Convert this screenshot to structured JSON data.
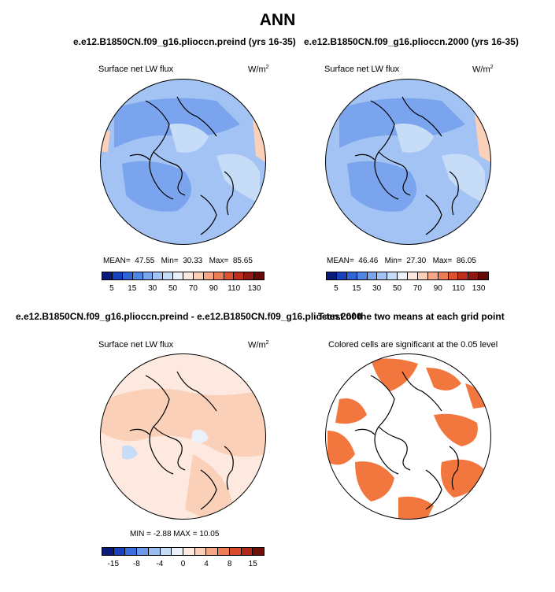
{
  "figure": {
    "title": "ANN",
    "case1_title": "e.e12.B1850CN.f09_g16.pliocсn.preind (yrs 16-35)",
    "case2_title": "e.e12.B1850CN.f09_g16.pliocсn.2000 (yrs 16-35)",
    "diff_title": "e.e12.B1850CN.f09_g16.pliocсn.preind - e.e12.B1850CN.f09_g16.pliocсn.2000",
    "ttest_title": "T-test of the two means at each grid point"
  },
  "panels": {
    "p1": {
      "variable": "Surface net LW flux",
      "units": "W/m",
      "units_sup": "2",
      "mean_label": "MEAN=",
      "mean": "47.55",
      "min_label": "Min=",
      "min": "30.33",
      "max_label": "Max=",
      "max": "85.65"
    },
    "p2": {
      "variable": "Surface net LW flux",
      "units": "W/m",
      "units_sup": "2",
      "mean_label": "MEAN=",
      "mean": "46.46",
      "min_label": "Min=",
      "min": "27.30",
      "max_label": "Max=",
      "max": "86.05"
    },
    "p3": {
      "variable": "Surface net LW flux",
      "units": "W/m",
      "units_sup": "2",
      "minmax_text": "MIN =   -2.88  MAX =   10.05"
    },
    "p4": {
      "significance_note": "Colored cells are significant at the 0.05 level"
    }
  },
  "chart_data": [
    {
      "type": "heatmap",
      "projection": "north-polar-stereographic",
      "title": "Surface net LW flux (preind, yrs 16-35)",
      "units": "W/m2",
      "mean": 47.55,
      "min": 30.33,
      "max": 85.65,
      "colorbar_levels": [
        5,
        10,
        15,
        20,
        30,
        40,
        50,
        60,
        70,
        80,
        90,
        100,
        110,
        120,
        130
      ],
      "colorbar_tick_labels": [
        "5",
        "15",
        "30",
        "50",
        "70",
        "90",
        "110",
        "130"
      ],
      "colorbar_colors": [
        "#0a1a7a",
        "#1a3fbf",
        "#2e64d8",
        "#4f86e6",
        "#7aa5ee",
        "#a3c3f4",
        "#c7dcf7",
        "#eaf1fb",
        "#fde9df",
        "#fbd0b9",
        "#f6a886",
        "#ee7c55",
        "#e0522f",
        "#c02d1a",
        "#901810",
        "#650a08"
      ]
    },
    {
      "type": "heatmap",
      "projection": "north-polar-stereographic",
      "title": "Surface net LW flux (2000, yrs 16-35)",
      "units": "W/m2",
      "mean": 46.46,
      "min": 27.3,
      "max": 86.05,
      "colorbar_levels": [
        5,
        10,
        15,
        20,
        30,
        40,
        50,
        60,
        70,
        80,
        90,
        100,
        110,
        120,
        130
      ],
      "colorbar_tick_labels": [
        "5",
        "15",
        "30",
        "50",
        "70",
        "90",
        "110",
        "130"
      ]
    },
    {
      "type": "heatmap",
      "projection": "north-polar-stereographic",
      "title": "Surface net LW flux (preind - 2000)",
      "units": "W/m2",
      "min": -2.88,
      "max": 10.05,
      "colorbar_levels": [
        -15,
        -12,
        -8,
        -6,
        -4,
        -2,
        0,
        2,
        4,
        6,
        8,
        12,
        15
      ],
      "colorbar_tick_labels": [
        "-15",
        "-8",
        "-4",
        "0",
        "4",
        "8",
        "15"
      ],
      "colorbar_colors": [
        "#0a1a7a",
        "#1a3fbf",
        "#3c6fdc",
        "#6b98eb",
        "#9bbdf2",
        "#c7dcf7",
        "#eaf1fb",
        "#fde9df",
        "#fbd0b9",
        "#f6a886",
        "#ee7c55",
        "#d84a2a",
        "#b0281a",
        "#700e08"
      ]
    },
    {
      "type": "heatmap",
      "projection": "north-polar-stereographic",
      "title": "T-test of the two means at each grid point",
      "note": "Colored cells are significant at the 0.05 level",
      "significance_level": 0.05,
      "fill_color": "#f2773f"
    }
  ]
}
